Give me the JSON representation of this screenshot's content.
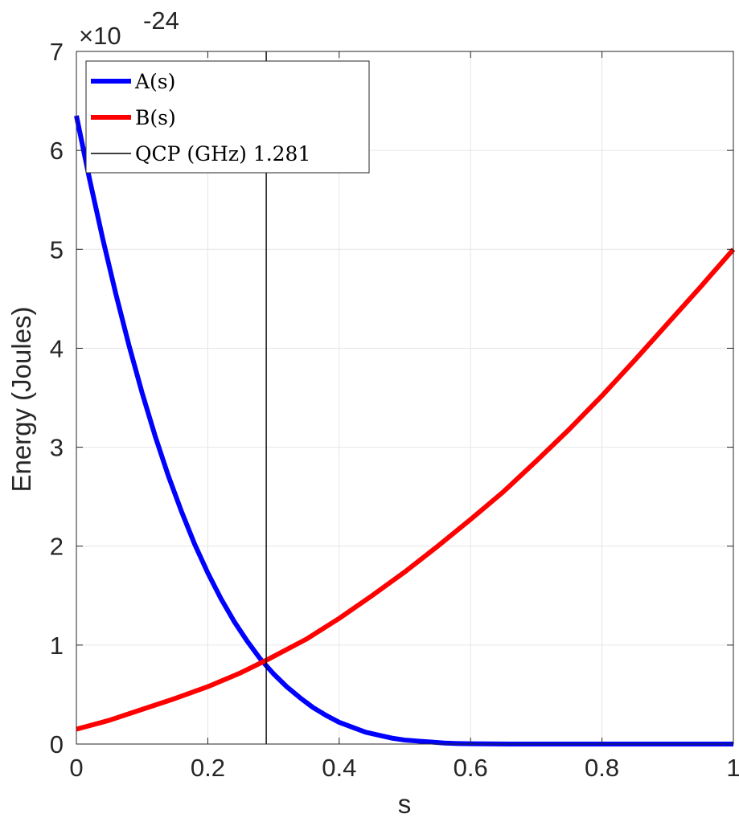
{
  "chart_data": {
    "type": "line",
    "xlabel": "s",
    "ylabel": "Energy (Joules)",
    "exponent_prefix": "×10",
    "exponent_power": "-24",
    "xlim": [
      0,
      1
    ],
    "ylim": [
      0,
      7
    ],
    "x_ticks": [
      {
        "value": 0,
        "label": "0"
      },
      {
        "value": 0.2,
        "label": "0.2"
      },
      {
        "value": 0.4,
        "label": "0.4"
      },
      {
        "value": 0.6,
        "label": "0.6"
      },
      {
        "value": 0.8,
        "label": "0.8"
      },
      {
        "value": 1,
        "label": "1"
      }
    ],
    "y_ticks": [
      {
        "value": 0,
        "label": "0"
      },
      {
        "value": 1,
        "label": "1"
      },
      {
        "value": 2,
        "label": "2"
      },
      {
        "value": 3,
        "label": "3"
      },
      {
        "value": 4,
        "label": "4"
      },
      {
        "value": 5,
        "label": "5"
      },
      {
        "value": 6,
        "label": "6"
      },
      {
        "value": 7,
        "label": "7"
      }
    ],
    "grid": true,
    "legend_position": "top-left",
    "series": [
      {
        "name": "A(s)",
        "color": "#0000ff",
        "x": [
          0,
          0.02,
          0.04,
          0.06,
          0.08,
          0.1,
          0.12,
          0.14,
          0.16,
          0.18,
          0.2,
          0.22,
          0.24,
          0.26,
          0.28,
          0.3,
          0.32,
          0.34,
          0.36,
          0.38,
          0.4,
          0.42,
          0.44,
          0.46,
          0.48,
          0.5,
          0.52,
          0.54,
          0.56,
          0.58,
          0.6,
          0.62,
          0.64,
          0.66,
          0.68,
          0.7,
          0.75,
          0.8,
          0.85,
          0.9,
          0.95,
          1.0
        ],
        "y": [
          6.35,
          5.71,
          5.11,
          4.55,
          4.03,
          3.55,
          3.11,
          2.71,
          2.35,
          2.02,
          1.73,
          1.47,
          1.24,
          1.04,
          0.86,
          0.71,
          0.58,
          0.47,
          0.37,
          0.29,
          0.22,
          0.17,
          0.12,
          0.09,
          0.06,
          0.04,
          0.03,
          0.02,
          0.01,
          0.005,
          0.003,
          0.002,
          0.001,
          0.0,
          0.0,
          0.0,
          0.0,
          0.0,
          0.0,
          0.0,
          0.0,
          0.0
        ]
      },
      {
        "name": "B(s)",
        "color": "#ff0000",
        "x": [
          0,
          0.05,
          0.1,
          0.15,
          0.2,
          0.25,
          0.29,
          0.35,
          0.4,
          0.45,
          0.5,
          0.55,
          0.6,
          0.65,
          0.7,
          0.75,
          0.8,
          0.85,
          0.9,
          0.95,
          1.0
        ],
        "y": [
          0.15,
          0.24,
          0.35,
          0.46,
          0.58,
          0.72,
          0.85,
          1.06,
          1.27,
          1.5,
          1.74,
          2.0,
          2.27,
          2.55,
          2.86,
          3.18,
          3.52,
          3.88,
          4.25,
          4.62,
          5.0
        ]
      },
      {
        "name": "QCP (GHz) 1.281",
        "color": "#000000",
        "type": "vline",
        "x": [
          0.289,
          0.289
        ],
        "y": [
          0,
          7
        ]
      }
    ]
  }
}
